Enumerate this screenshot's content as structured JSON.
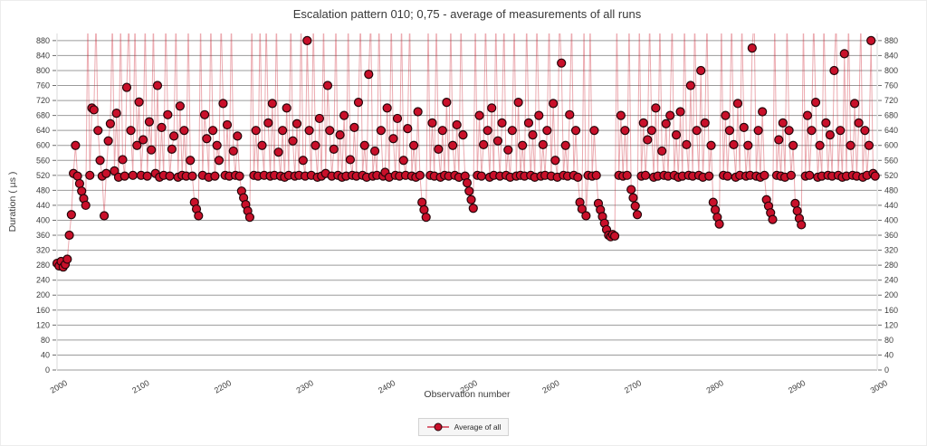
{
  "chart_data": {
    "type": "line",
    "title": "Escalation pattern 010; 0,75 - average of measurements of all runs",
    "xlabel": "Observation number",
    "ylabel": "Duration ( µs )",
    "legend": [
      {
        "label": "Average of all"
      }
    ],
    "axes": {
      "xlim": [
        2000,
        3000
      ],
      "ylim": [
        0,
        899
      ],
      "x_ticks": [
        2000,
        2100,
        2200,
        2300,
        2400,
        2500,
        2600,
        2700,
        2800,
        2900,
        3000
      ],
      "y_ticks": [
        0,
        40,
        80,
        120,
        160,
        200,
        240,
        280,
        320,
        360,
        400,
        440,
        480,
        520,
        560,
        600,
        640,
        680,
        720,
        760,
        800,
        840,
        880
      ],
      "grid": true,
      "y_labels_both_sides": true,
      "x_tick_rotation_deg": -30,
      "legend_position": "bottom-center"
    },
    "colors": {
      "marker_fill": "#c9102a",
      "marker_edge": "#240509",
      "line": "rgba(206,32,47,0.38)",
      "grid": "#9b9b9b",
      "tick_mark": "#6e6e6e",
      "tick_text": "#3d3d3d",
      "axis_edge": "#dadada"
    },
    "series": [
      {
        "name": "Average of all",
        "x_start": 2000,
        "x_step": 2.5,
        "offscale_spike_value": 940,
        "values": [
          285,
          278,
          290,
          275,
          282,
          296,
          360,
          415,
          525,
          600,
          518,
          498,
          478,
          458,
          440,
          940,
          520,
          700,
          695,
          940,
          640,
          560,
          518,
          412,
          525,
          612,
          658,
          940,
          532,
          686,
          515,
          940,
          562,
          518,
          755,
          940,
          640,
          520,
          940,
          600,
          716,
          520,
          615,
          940,
          518,
          663,
          588,
          940,
          525,
          760,
          515,
          648,
          520,
          940,
          682,
          518,
          590,
          625,
          940,
          515,
          705,
          520,
          640,
          518,
          940,
          560,
          518,
          448,
          430,
          412,
          940,
          520,
          682,
          618,
          515,
          940,
          640,
          518,
          600,
          560,
          940,
          712,
          520,
          655,
          518,
          940,
          585,
          520,
          625,
          518,
          478,
          460,
          442,
          425,
          408,
          940,
          520,
          640,
          518,
          940,
          600,
          520,
          940,
          660,
          518,
          712,
          520,
          940,
          582,
          518,
          640,
          515,
          700,
          520,
          940,
          612,
          518,
          658,
          520,
          940,
          560,
          518,
          880,
          640,
          520,
          940,
          600,
          515,
          672,
          518,
          940,
          525,
          760,
          640,
          518,
          590,
          940,
          520,
          628,
          515,
          680,
          518,
          940,
          562,
          520,
          648,
          518,
          715,
          940,
          520,
          600,
          515,
          790,
          940,
          518,
          585,
          520,
          940,
          640,
          518,
          528,
          700,
          515,
          940,
          618,
          520,
          672,
          518,
          940,
          560,
          520,
          645,
          940,
          518,
          600,
          515,
          690,
          520,
          448,
          428,
          408,
          940,
          520,
          660,
          518,
          940,
          590,
          515,
          640,
          520,
          715,
          518,
          940,
          600,
          520,
          655,
          515,
          940,
          628,
          518,
          500,
          478,
          455,
          432,
          940,
          520,
          680,
          518,
          602,
          940,
          640,
          515,
          700,
          520,
          940,
          612,
          518,
          660,
          940,
          520,
          588,
          515,
          640,
          940,
          518,
          715,
          520,
          600,
          518,
          940,
          660,
          520,
          628,
          515,
          940,
          680,
          518,
          602,
          520,
          640,
          940,
          518,
          712,
          560,
          515,
          940,
          820,
          520,
          600,
          518,
          682,
          940,
          520,
          640,
          515,
          448,
          430,
          940,
          412,
          520,
          940,
          518,
          640,
          520,
          445,
          428,
          410,
          392,
          375,
          360,
          356,
          362,
          358,
          940,
          520,
          680,
          518,
          640,
          520,
          940,
          482,
          460,
          438,
          415,
          940,
          518,
          660,
          520,
          615,
          940,
          640,
          515,
          700,
          518,
          940,
          585,
          520,
          658,
          518,
          680,
          940,
          520,
          628,
          515,
          690,
          518,
          940,
          602,
          520,
          760,
          518,
          940,
          640,
          520,
          800,
          515,
          660,
          940,
          518,
          600,
          448,
          428,
          408,
          390,
          940,
          520,
          680,
          518,
          640,
          940,
          602,
          515,
          712,
          520,
          940,
          648,
          518,
          600,
          520,
          860,
          940,
          518,
          640,
          515,
          690,
          520,
          455,
          438,
          420,
          402,
          940,
          520,
          615,
          518,
          660,
          515,
          940,
          640,
          520,
          600,
          445,
          425,
          405,
          388,
          940,
          518,
          680,
          520,
          640,
          940,
          715,
          515,
          600,
          518,
          940,
          660,
          520,
          628,
          518,
          800,
          940,
          520,
          640,
          515,
          845,
          518,
          940,
          600,
          520,
          712,
          518,
          660,
          940,
          515,
          640,
          520,
          600,
          880,
          525,
          518
        ]
      }
    ]
  }
}
